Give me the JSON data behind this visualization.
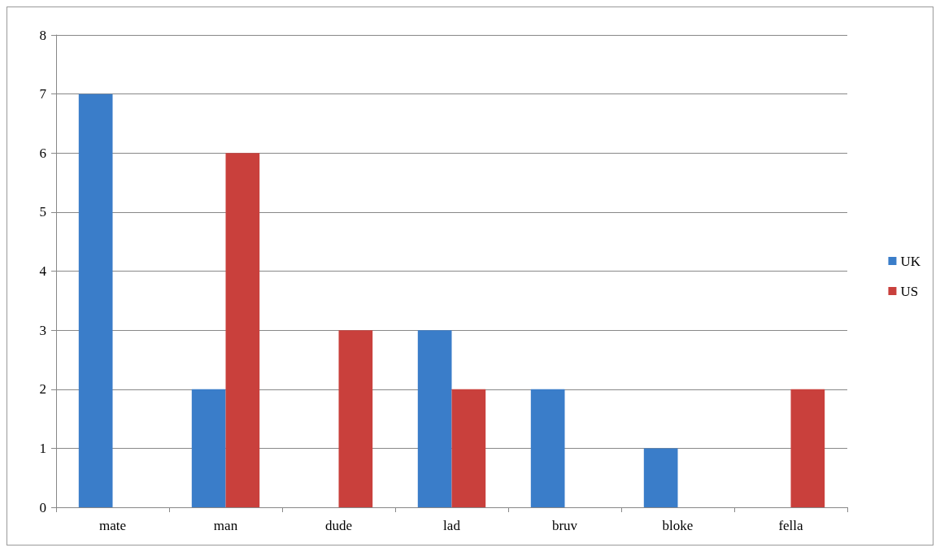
{
  "chart_data": {
    "type": "bar",
    "categories": [
      "mate",
      "man",
      "dude",
      "lad",
      "bruv",
      "bloke",
      "fella"
    ],
    "series": [
      {
        "name": "UK",
        "color": "#3a7dc9",
        "values": [
          7,
          2,
          0,
          3,
          2,
          1,
          0
        ]
      },
      {
        "name": "US",
        "color": "#c9403c",
        "values": [
          0,
          6,
          3,
          2,
          0,
          0,
          2
        ]
      }
    ],
    "ylim": [
      0,
      8
    ],
    "yticks": [
      0,
      1,
      2,
      3,
      4,
      5,
      6,
      7,
      8
    ],
    "grid": "y",
    "legend": "right"
  }
}
